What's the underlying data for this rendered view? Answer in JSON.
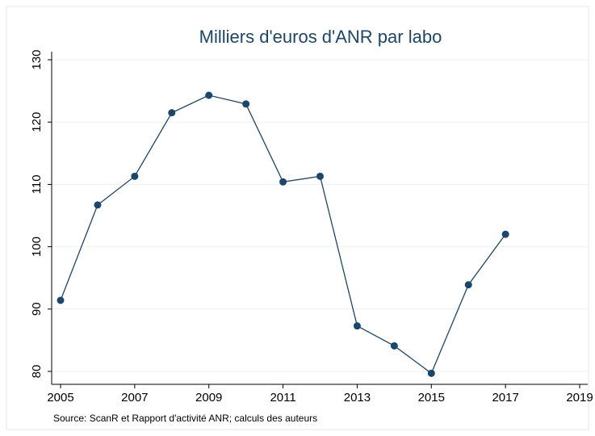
{
  "chart_data": {
    "type": "line",
    "title": "Milliers d'euros d'ANR par labo",
    "note": "Source: ScanR et Rapport d'activité ANR; calculs des auteurs",
    "x": [
      2005,
      2006,
      2007,
      2008,
      2009,
      2010,
      2011,
      2012,
      2013,
      2014,
      2015,
      2016,
      2017
    ],
    "values": [
      91.4,
      106.7,
      111.3,
      121.5,
      124.3,
      122.9,
      110.4,
      111.3,
      87.3,
      84.1,
      79.7,
      93.9,
      102.0
    ],
    "color": "#1a476f",
    "xlim": [
      2005,
      2019
    ],
    "xticks": [
      2005,
      2007,
      2009,
      2011,
      2013,
      2015,
      2017,
      2019
    ],
    "ylim": [
      80,
      130
    ],
    "yticks": [
      80,
      90,
      100,
      110,
      120,
      130
    ],
    "grid": true
  }
}
